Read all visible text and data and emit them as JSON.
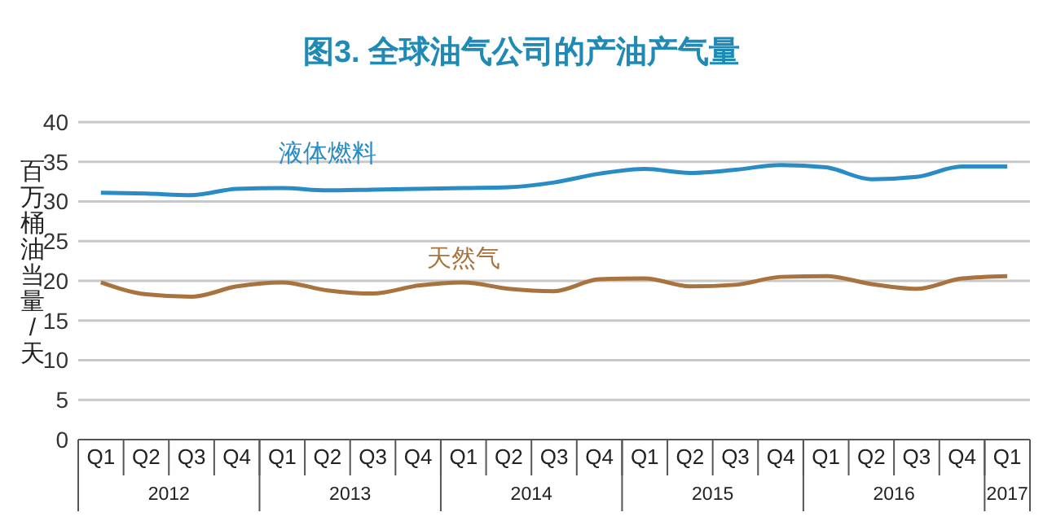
{
  "chart_data": {
    "type": "line",
    "title": "图3. 全球油气公司的产油产气量",
    "ylabel": "百万桶油当量/天",
    "categories": [
      "Q1",
      "Q2",
      "Q3",
      "Q4",
      "Q1",
      "Q2",
      "Q3",
      "Q4",
      "Q1",
      "Q2",
      "Q3",
      "Q4",
      "Q1",
      "Q2",
      "Q3",
      "Q4",
      "Q1",
      "Q2",
      "Q3",
      "Q4",
      "Q1"
    ],
    "series": [
      {
        "name": "液体燃料",
        "color": "#2a8cc4",
        "values": [
          31.1,
          31.0,
          30.8,
          31.6,
          31.7,
          31.4,
          31.5,
          31.6,
          31.7,
          31.8,
          32.4,
          33.5,
          34.1,
          33.6,
          34.0,
          34.6,
          34.3,
          32.8,
          33.1,
          34.4,
          34.4
        ]
      },
      {
        "name": "天然气",
        "color": "#a8733e",
        "values": [
          19.8,
          18.3,
          18.0,
          19.3,
          19.8,
          18.8,
          18.4,
          19.4,
          19.8,
          19.0,
          18.7,
          20.2,
          20.3,
          19.3,
          19.5,
          20.5,
          20.6,
          19.6,
          19.0,
          20.3,
          20.6
        ]
      }
    ],
    "annotations": [
      "2012",
      "2013",
      "2014",
      "2015",
      "2016",
      "2017"
    ],
    "ylim": [
      0,
      40
    ],
    "yticks": [
      0,
      5,
      10,
      15,
      20,
      25,
      30,
      35,
      40
    ],
    "grid": "y",
    "marker": "none",
    "line_style": "solid"
  }
}
